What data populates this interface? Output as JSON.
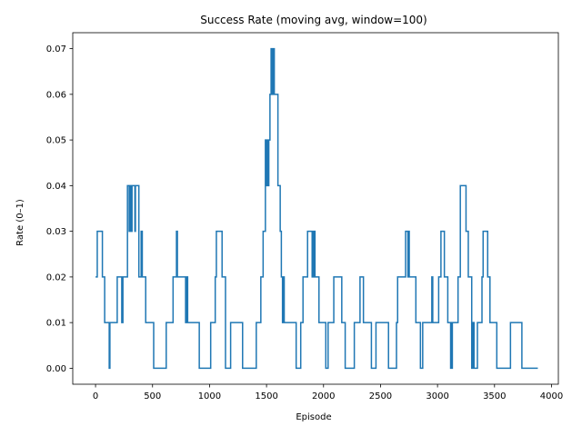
{
  "chart_data": {
    "type": "line",
    "title": "Success Rate (moving avg, window=100)",
    "xlabel": "Episode",
    "ylabel": "Rate (0–1)",
    "xlim": [
      -200,
      4060
    ],
    "ylim": [
      -0.0035,
      0.0735
    ],
    "xticks": [
      0,
      500,
      1000,
      1500,
      2000,
      2500,
      3000,
      3500,
      4000
    ],
    "yticks": [
      0.0,
      0.01,
      0.02,
      0.03,
      0.04,
      0.05,
      0.06,
      0.07
    ],
    "xtick_labels": [
      "0",
      "500",
      "1000",
      "1500",
      "2000",
      "2500",
      "3000",
      "3500",
      "4000"
    ],
    "ytick_labels": [
      "0.00",
      "0.01",
      "0.02",
      "0.03",
      "0.04",
      "0.05",
      "0.06",
      "0.07"
    ],
    "grid": false,
    "legend": "none",
    "series": [
      {
        "color": "#1f77b4",
        "step": "post",
        "points": [
          [
            0,
            0.02
          ],
          [
            15,
            0.03
          ],
          [
            60,
            0.02
          ],
          [
            80,
            0.01
          ],
          [
            120,
            0.0
          ],
          [
            126,
            0.01
          ],
          [
            190,
            0.02
          ],
          [
            230,
            0.01
          ],
          [
            240,
            0.02
          ],
          [
            280,
            0.04
          ],
          [
            295,
            0.03
          ],
          [
            300,
            0.04
          ],
          [
            310,
            0.03
          ],
          [
            320,
            0.04
          ],
          [
            345,
            0.03
          ],
          [
            350,
            0.04
          ],
          [
            380,
            0.02
          ],
          [
            400,
            0.03
          ],
          [
            410,
            0.02
          ],
          [
            440,
            0.01
          ],
          [
            510,
            0.0
          ],
          [
            620,
            0.01
          ],
          [
            680,
            0.02
          ],
          [
            710,
            0.03
          ],
          [
            718,
            0.02
          ],
          [
            790,
            0.01
          ],
          [
            800,
            0.02
          ],
          [
            808,
            0.01
          ],
          [
            910,
            0.0
          ],
          [
            1010,
            0.01
          ],
          [
            1050,
            0.02
          ],
          [
            1060,
            0.03
          ],
          [
            1110,
            0.02
          ],
          [
            1140,
            0.0
          ],
          [
            1185,
            0.01
          ],
          [
            1290,
            0.0
          ],
          [
            1410,
            0.01
          ],
          [
            1450,
            0.02
          ],
          [
            1470,
            0.03
          ],
          [
            1490,
            0.05
          ],
          [
            1500,
            0.04
          ],
          [
            1510,
            0.05
          ],
          [
            1515,
            0.04
          ],
          [
            1520,
            0.05
          ],
          [
            1530,
            0.06
          ],
          [
            1540,
            0.07
          ],
          [
            1548,
            0.06
          ],
          [
            1552,
            0.07
          ],
          [
            1558,
            0.06
          ],
          [
            1562,
            0.07
          ],
          [
            1568,
            0.06
          ],
          [
            1600,
            0.04
          ],
          [
            1620,
            0.03
          ],
          [
            1630,
            0.02
          ],
          [
            1640,
            0.01
          ],
          [
            1648,
            0.02
          ],
          [
            1655,
            0.01
          ],
          [
            1760,
            0.0
          ],
          [
            1800,
            0.01
          ],
          [
            1820,
            0.02
          ],
          [
            1860,
            0.03
          ],
          [
            1900,
            0.02
          ],
          [
            1905,
            0.03
          ],
          [
            1912,
            0.02
          ],
          [
            1918,
            0.03
          ],
          [
            1925,
            0.02
          ],
          [
            1960,
            0.01
          ],
          [
            2020,
            0.0
          ],
          [
            2040,
            0.01
          ],
          [
            2090,
            0.02
          ],
          [
            2160,
            0.01
          ],
          [
            2190,
            0.0
          ],
          [
            2270,
            0.01
          ],
          [
            2320,
            0.02
          ],
          [
            2350,
            0.01
          ],
          [
            2420,
            0.0
          ],
          [
            2460,
            0.01
          ],
          [
            2570,
            0.0
          ],
          [
            2640,
            0.01
          ],
          [
            2650,
            0.02
          ],
          [
            2720,
            0.03
          ],
          [
            2740,
            0.02
          ],
          [
            2745,
            0.03
          ],
          [
            2752,
            0.02
          ],
          [
            2810,
            0.01
          ],
          [
            2850,
            0.0
          ],
          [
            2870,
            0.01
          ],
          [
            2950,
            0.02
          ],
          [
            2958,
            0.01
          ],
          [
            3010,
            0.02
          ],
          [
            3030,
            0.03
          ],
          [
            3060,
            0.02
          ],
          [
            3090,
            0.01
          ],
          [
            3115,
            0.0
          ],
          [
            3120,
            0.01
          ],
          [
            3125,
            0.0
          ],
          [
            3130,
            0.01
          ],
          [
            3180,
            0.02
          ],
          [
            3200,
            0.04
          ],
          [
            3250,
            0.03
          ],
          [
            3270,
            0.02
          ],
          [
            3300,
            0.0
          ],
          [
            3310,
            0.01
          ],
          [
            3320,
            0.0
          ],
          [
            3350,
            0.01
          ],
          [
            3390,
            0.02
          ],
          [
            3400,
            0.03
          ],
          [
            3440,
            0.02
          ],
          [
            3460,
            0.01
          ],
          [
            3520,
            0.0
          ],
          [
            3640,
            0.01
          ],
          [
            3740,
            0.0
          ],
          [
            3880,
            0.0
          ]
        ]
      }
    ]
  }
}
